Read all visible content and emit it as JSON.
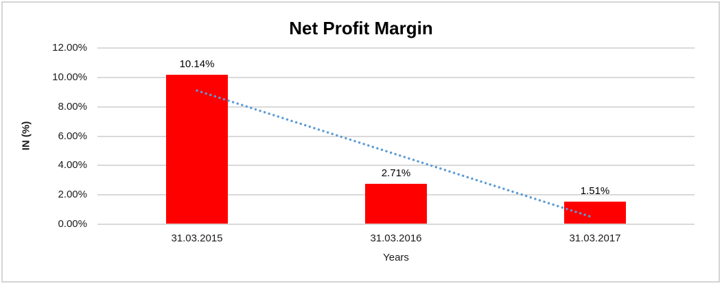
{
  "chart_data": {
    "type": "bar",
    "title": "Net Profit Margin",
    "xlabel": "Years",
    "ylabel": "IN (%)",
    "categories": [
      "31.03.2015",
      "31.03.2016",
      "31.03.2017"
    ],
    "values": [
      10.14,
      2.71,
      1.51
    ],
    "data_labels": [
      "10.14%",
      "2.71%",
      "1.51%"
    ],
    "y_ticks": [
      "0.00%",
      "2.00%",
      "4.00%",
      "6.00%",
      "8.00%",
      "10.00%",
      "12.00%"
    ],
    "y_tick_values": [
      0,
      2,
      4,
      6,
      8,
      10,
      12
    ],
    "ylim": [
      0,
      12
    ],
    "grid": true,
    "legend_position": "none",
    "colors": {
      "bar": "#ff0000",
      "trendline": "#5b9bd5",
      "gridline": "#d9d9d9",
      "text": "#1a1a1a",
      "title": "#000000",
      "frame_border": "#d4d4d4"
    },
    "trendline": {
      "type": "linear",
      "style": "dotted",
      "start_value": 9.1,
      "end_value": 0.47
    }
  }
}
